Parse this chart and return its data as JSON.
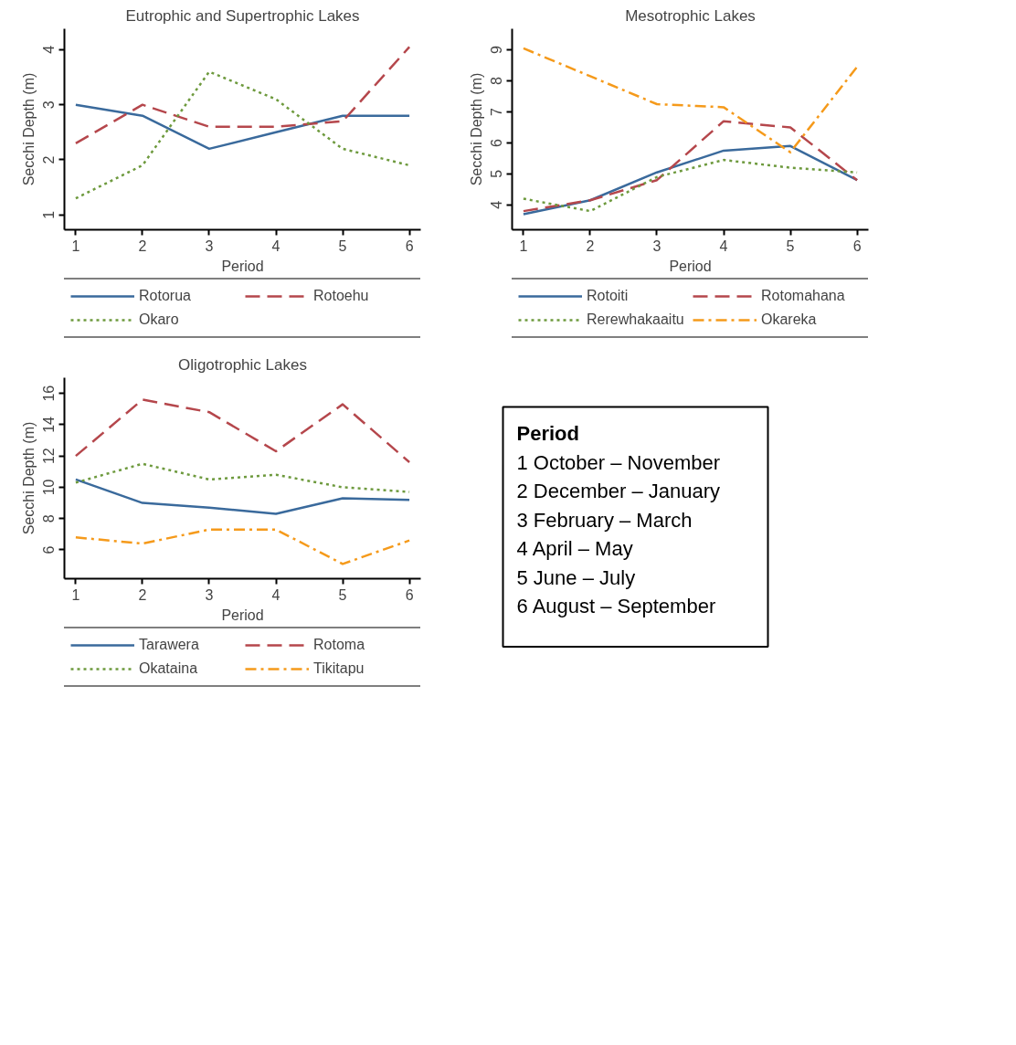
{
  "chart_data": [
    {
      "type": "line",
      "title": "Eutrophic and Supertrophic Lakes",
      "xlabel": "Period",
      "ylabel": "Secchi Depth (m)",
      "x": [
        1,
        2,
        3,
        4,
        5,
        6
      ],
      "xlim": [
        0.83,
        6.17
      ],
      "xticks": [
        1,
        2,
        3,
        4,
        5,
        6
      ],
      "ylim": [
        0.73,
        4.38
      ],
      "yticks": [
        1,
        2,
        3,
        4
      ],
      "grid": false,
      "legend": "bottom",
      "series": [
        {
          "name": "Rotorua",
          "color": "#3a6a9c",
          "line_style": "solid",
          "values": [
            3.0,
            2.8,
            2.2,
            2.5,
            2.8,
            2.8
          ]
        },
        {
          "name": "Rotoehu",
          "color": "#b5474c",
          "line_style": "dashed",
          "values": [
            2.3,
            3.0,
            2.6,
            2.6,
            2.7,
            4.05
          ]
        },
        {
          "name": "Okaro",
          "color": "#6e9a3e",
          "line_style": "dotted",
          "values": [
            1.3,
            1.9,
            3.6,
            3.1,
            2.2,
            1.9
          ]
        }
      ]
    },
    {
      "type": "line",
      "title": "Mesotrophic Lakes",
      "xlabel": "Period",
      "ylabel": "Secchi Depth (m)",
      "x": [
        1,
        2,
        3,
        4,
        5,
        6
      ],
      "xlim": [
        0.83,
        6.17
      ],
      "xticks": [
        1,
        2,
        3,
        4,
        5,
        6
      ],
      "ylim": [
        3.2,
        9.68
      ],
      "yticks": [
        4,
        5,
        6,
        7,
        8,
        9
      ],
      "grid": false,
      "legend": "bottom",
      "series": [
        {
          "name": "Rotoiti",
          "color": "#3a6a9c",
          "line_style": "solid",
          "values": [
            3.7,
            4.15,
            5.05,
            5.75,
            5.9,
            4.8
          ]
        },
        {
          "name": "Rotomahana",
          "color": "#b5474c",
          "line_style": "dashed",
          "values": [
            3.8,
            4.15,
            4.8,
            6.7,
            6.5,
            4.8
          ]
        },
        {
          "name": "Rerewhakaaitu",
          "color": "#6e9a3e",
          "line_style": "dotted",
          "values": [
            4.2,
            3.8,
            4.9,
            5.45,
            5.2,
            5.05
          ]
        },
        {
          "name": "Okareka",
          "color": "#f59a1b",
          "line_style": "dashdot",
          "values": [
            9.05,
            8.15,
            7.25,
            7.15,
            5.7,
            8.45
          ]
        }
      ]
    },
    {
      "type": "line",
      "title": "Oligotrophic Lakes",
      "xlabel": "Period",
      "ylabel": "Secchi Depth (m)",
      "x": [
        1,
        2,
        3,
        4,
        5,
        6
      ],
      "xlim": [
        0.83,
        6.17
      ],
      "xticks": [
        1,
        2,
        3,
        4,
        5,
        6
      ],
      "ylim": [
        4.16,
        17.0
      ],
      "yticks": [
        6,
        8,
        10,
        12,
        14,
        16
      ],
      "grid": false,
      "legend": "bottom",
      "series": [
        {
          "name": "Tarawera",
          "color": "#3a6a9c",
          "line_style": "solid",
          "values": [
            10.5,
            9.0,
            8.7,
            8.3,
            9.3,
            9.2
          ]
        },
        {
          "name": "Rotoma",
          "color": "#b5474c",
          "line_style": "dashed",
          "values": [
            12.0,
            15.6,
            14.8,
            12.3,
            15.3,
            11.6
          ]
        },
        {
          "name": "Okataina",
          "color": "#6e9a3e",
          "line_style": "dotted",
          "values": [
            10.3,
            11.5,
            10.5,
            10.8,
            10.0,
            9.7
          ]
        },
        {
          "name": "Tikitapu",
          "color": "#f59a1b",
          "line_style": "dashdot",
          "values": [
            6.8,
            6.4,
            7.3,
            7.3,
            5.1,
            6.6
          ]
        }
      ]
    },
    {
      "type": "other",
      "title": "Period",
      "annotations": [
        "1  October – November",
        "2  December – January",
        "3  February – March",
        "4  April – May",
        "5  June – July",
        "6  August – September"
      ]
    }
  ]
}
